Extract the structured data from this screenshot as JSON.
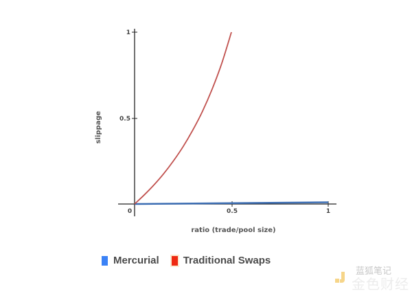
{
  "chart_data": {
    "type": "line",
    "title": "",
    "xlabel": "ratio (trade/pool size)",
    "ylabel": "slippage",
    "xlim": [
      0,
      1
    ],
    "ylim": [
      0,
      1
    ],
    "x_ticks": [
      "0",
      "0.5",
      "1"
    ],
    "y_ticks": [
      "0.5",
      "1"
    ],
    "grid": false,
    "legend_position": "bottom",
    "series": [
      {
        "name": "Mercurial",
        "color": "#3b6db3",
        "legend_color": "#3b82f6",
        "x": [
          0,
          0.1,
          0.2,
          0.3,
          0.4,
          0.5,
          0.6,
          0.7,
          0.8,
          0.9,
          1.0
        ],
        "values": [
          0,
          0.001,
          0.002,
          0.003,
          0.004,
          0.005,
          0.006,
          0.007,
          0.008,
          0.009,
          0.01
        ]
      },
      {
        "name": "Traditional Swaps",
        "color": "#c0504d",
        "legend_color": "#ee2a12",
        "x": [
          0,
          0.05,
          0.1,
          0.15,
          0.2,
          0.25,
          0.3,
          0.35,
          0.4,
          0.45,
          0.5
        ],
        "values": [
          0,
          0.053,
          0.111,
          0.176,
          0.25,
          0.333,
          0.429,
          0.538,
          0.667,
          0.818,
          1.0
        ]
      }
    ]
  },
  "legend": {
    "items": [
      {
        "label": "Mercurial",
        "color": "#3b82f6"
      },
      {
        "label": "Traditional Swaps",
        "color": "#ee2a12"
      }
    ]
  },
  "watermark": {
    "top_text": "蓝狐笔记",
    "bottom_text": "金色财经"
  }
}
